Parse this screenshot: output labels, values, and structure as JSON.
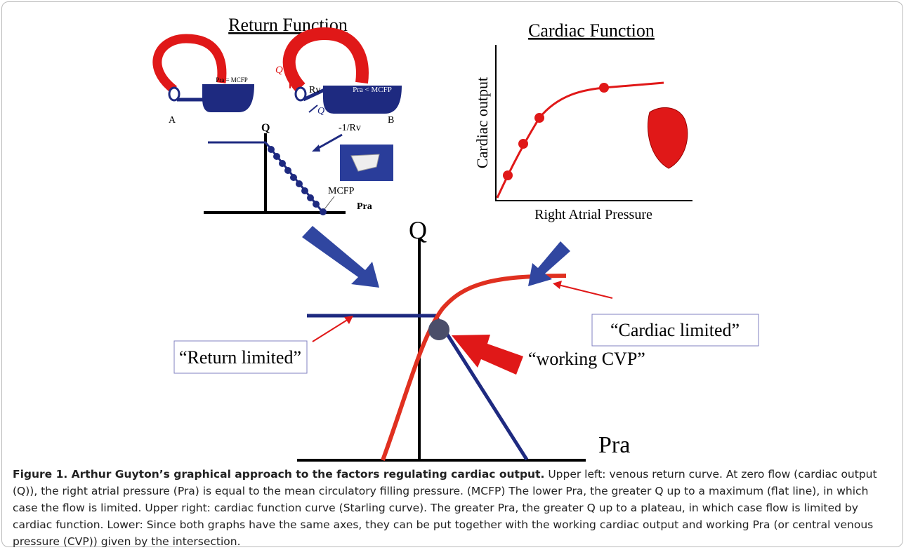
{
  "panels": {
    "return_function": {
      "title": "Return Function",
      "pra_equal": "Pra = MCFP",
      "a": "A",
      "q_arrow": "Q",
      "rv": "Rv",
      "pra_less": "Pra < MCFP",
      "b": "B",
      "q_flow": "Q",
      "q_axis": "Q",
      "slope": "-1/Rv",
      "mcfp": "MCFP",
      "pra_axis": "Pra"
    },
    "cardiac_function": {
      "title": "Cardiac Function",
      "y_label": "Cardiac output",
      "x_label": "Right Atrial Pressure"
    },
    "combined": {
      "q_axis": "Q",
      "pra_axis": "Pra",
      "cardiac_limited": "“Cardiac limited”",
      "return_limited": "“Return limited”",
      "working_cvp": "“working CVP”"
    }
  },
  "caption": {
    "title": "Figure 1. Arthur Guyton’s graphical approach to the factors regulating cardiac output.",
    "text": "Upper left: venous return curve. At zero flow (cardiac output (Q)), the right atrial pressure (Pra) is equal to the mean circulatory filling pressure. (MCFP) The lower Pra, the greater Q up to a maximum (flat line), in which case the flow is limited. Upper right: cardiac function curve (Starling curve). The greater Pra, the greater Q up to a plateau, in which case flow is limited by cardiac function. Lower: Since both graphs have the same axes, they can be put together with the working cardiac output and working Pra (or central venous pressure (CVP)) given by the intersection."
  }
}
